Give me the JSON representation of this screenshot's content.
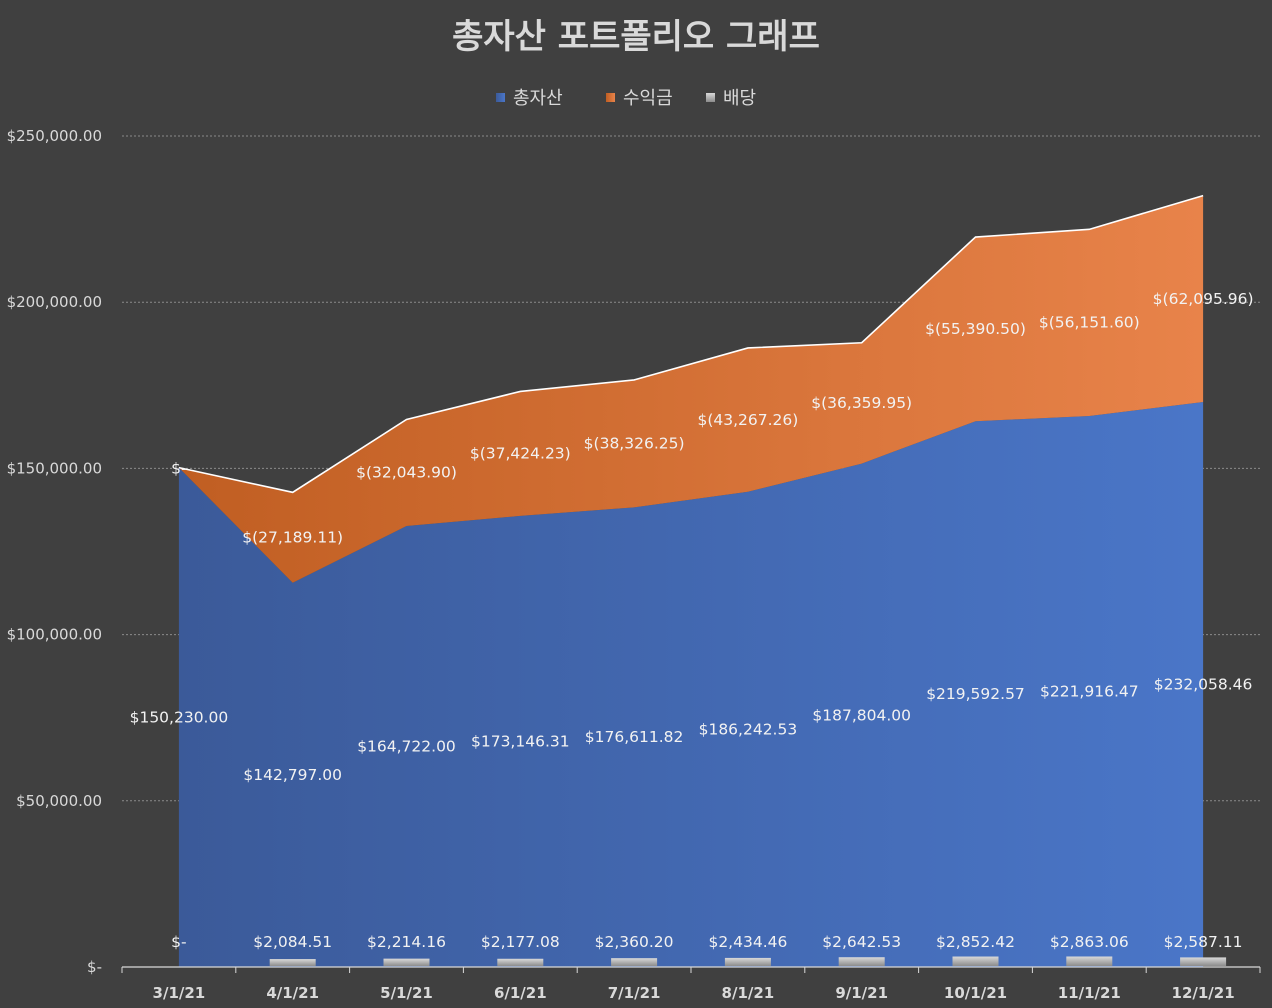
{
  "chart_data": {
    "type": "area",
    "title": "총자산 포트폴리오 그래프",
    "legend_position": "top",
    "grid": true,
    "ylim": [
      0,
      250000
    ],
    "y_ticks": [
      {
        "value": 0,
        "label": "$-"
      },
      {
        "value": 50000,
        "label": "$50,000.00"
      },
      {
        "value": 100000,
        "label": "$100,000.00"
      },
      {
        "value": 150000,
        "label": "$150,000.00"
      },
      {
        "value": 200000,
        "label": "$200,000.00"
      },
      {
        "value": 250000,
        "label": "$250,000.00"
      }
    ],
    "categories": [
      "3/1/21",
      "4/1/21",
      "5/1/21",
      "6/1/21",
      "7/1/21",
      "8/1/21",
      "9/1/21",
      "10/1/21",
      "11/1/21",
      "12/1/21"
    ],
    "series": [
      {
        "name": "총자산",
        "color": "#4472c4",
        "values": [
          150230.0,
          142797.0,
          164722.0,
          173146.31,
          176611.82,
          186242.53,
          187804.0,
          219592.57,
          221916.47,
          232058.46
        ],
        "labels": [
          "$150,230.00",
          "$142,797.00",
          "$164,722.00",
          "$173,146.31",
          "$176,611.82",
          "$186,242.53",
          "$187,804.00",
          "$219,592.57",
          "$221,916.47",
          "$232,058.46"
        ]
      },
      {
        "name": "수익금",
        "color": "#ed7d31",
        "values": [
          0,
          -27189.11,
          -32043.9,
          -37424.23,
          -38326.25,
          -43267.26,
          -36359.95,
          -55390.5,
          -56151.6,
          -62095.96
        ],
        "labels": [
          "$-",
          "$(27,189.11)",
          "$(32,043.90)",
          "$(37,424.23)",
          "$(38,326.25)",
          "$(43,267.26)",
          "$(36,359.95)",
          "$(55,390.50)",
          "$(56,151.60)",
          "$(62,095.96)"
        ]
      },
      {
        "name": "배당",
        "color": "#a5a5a5",
        "values": [
          0,
          2084.51,
          2214.16,
          2177.08,
          2360.2,
          2434.46,
          2642.53,
          2852.42,
          2863.06,
          2587.11
        ],
        "labels": [
          "$-",
          "$2,084.51",
          "$2,214.16",
          "$2,177.08",
          "$2,360.20",
          "$2,434.46",
          "$2,642.53",
          "$2,852.42",
          "$2,863.06",
          "$2,587.11"
        ]
      }
    ]
  }
}
